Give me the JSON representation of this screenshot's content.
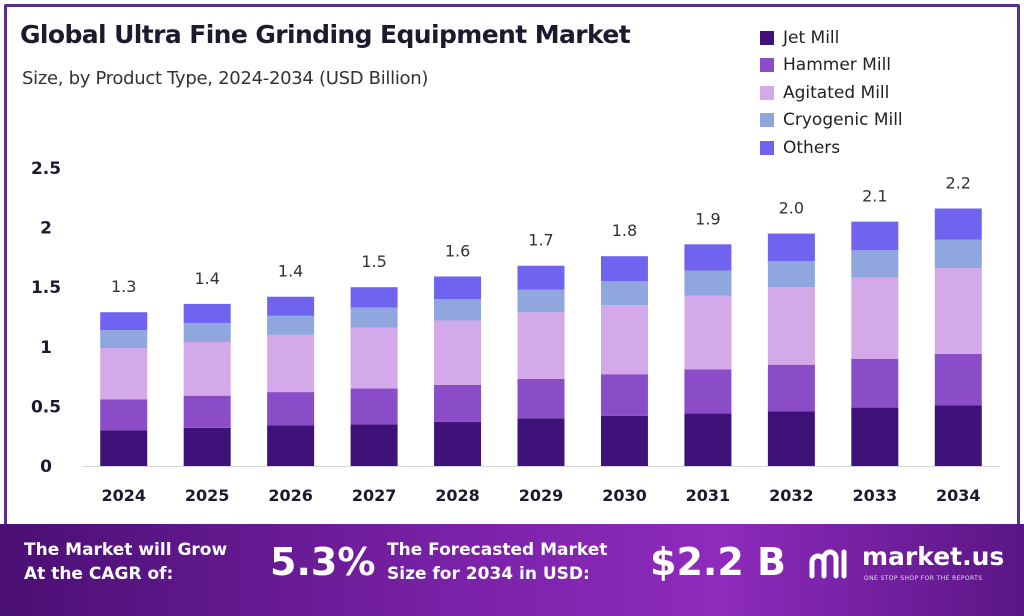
{
  "header": {
    "title": "Global Ultra Fine Grinding Equipment Market",
    "subtitle": "Size, by Product Type, 2024-2034 (USD Billion)"
  },
  "legend": [
    {
      "label": "Jet Mill",
      "color": "#3f1279"
    },
    {
      "label": "Hammer Mill",
      "color": "#8a4cc7"
    },
    {
      "label": "Agitated Mill",
      "color": "#d4a9ea"
    },
    {
      "label": "Cryogenic Mill",
      "color": "#8fa6de"
    },
    {
      "label": "Others",
      "color": "#6f63ef"
    }
  ],
  "chart_data": {
    "type": "bar",
    "stacked": true,
    "title": "Global Ultra Fine Grinding Equipment Market",
    "subtitle": "Size, by Product Type, 2024-2034 (USD Billion)",
    "categories": [
      "2024",
      "2025",
      "2026",
      "2027",
      "2028",
      "2029",
      "2030",
      "2031",
      "2032",
      "2033",
      "2034"
    ],
    "series": [
      {
        "name": "Jet Mill",
        "color": "#3f1279",
        "values": [
          0.3,
          0.32,
          0.34,
          0.35,
          0.37,
          0.4,
          0.42,
          0.44,
          0.46,
          0.49,
          0.51
        ]
      },
      {
        "name": "Hammer Mill",
        "color": "#8a4cc7",
        "values": [
          0.26,
          0.27,
          0.28,
          0.3,
          0.31,
          0.33,
          0.35,
          0.37,
          0.39,
          0.41,
          0.43
        ]
      },
      {
        "name": "Agitated Mill",
        "color": "#d4a9ea",
        "values": [
          0.43,
          0.45,
          0.48,
          0.51,
          0.54,
          0.56,
          0.58,
          0.62,
          0.65,
          0.68,
          0.72
        ]
      },
      {
        "name": "Cryogenic Mill",
        "color": "#8fa6de",
        "values": [
          0.15,
          0.16,
          0.16,
          0.17,
          0.18,
          0.19,
          0.2,
          0.21,
          0.22,
          0.23,
          0.24
        ]
      },
      {
        "name": "Others",
        "color": "#6f63ef",
        "values": [
          0.15,
          0.16,
          0.16,
          0.17,
          0.19,
          0.2,
          0.21,
          0.22,
          0.23,
          0.24,
          0.26
        ]
      }
    ],
    "totals": [
      "1.3",
      "1.4",
      "1.4",
      "1.5",
      "1.6",
      "1.7",
      "1.8",
      "1.9",
      "2.0",
      "2.1",
      "2.2"
    ],
    "yticks": [
      "0",
      "0.5",
      "1",
      "1.5",
      "2",
      "2.5"
    ],
    "ylim": [
      0,
      2.5
    ],
    "xlabel": "",
    "ylabel": "",
    "grid": false,
    "legend_position": "top-right"
  },
  "banner": {
    "cagr_label_line1": "The Market will Grow",
    "cagr_label_line2": "At the CAGR of:",
    "cagr_value": "5.3%",
    "forecast_label_line1": "The Forecasted Market",
    "forecast_label_line2": "Size for 2034 in USD:",
    "forecast_value": "$2.2 B",
    "logo_name": "market.us",
    "logo_tagline": "ONE STOP SHOP FOR THE REPORTS",
    "logo_icon": "market-us-logo-icon"
  }
}
